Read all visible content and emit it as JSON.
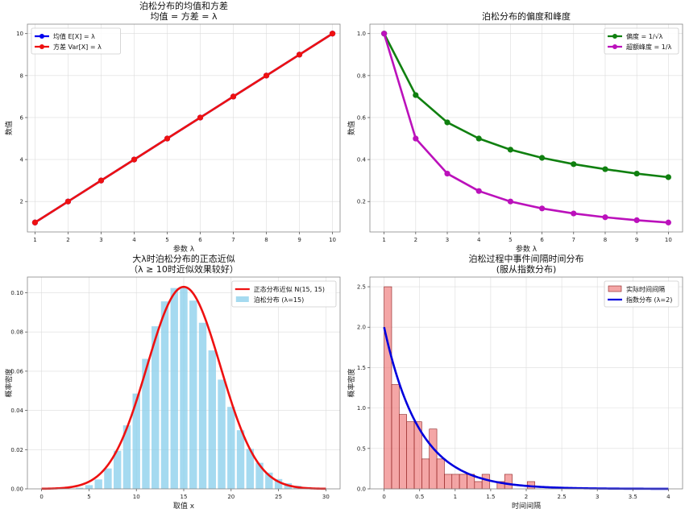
{
  "chart_data": [
    {
      "id": "p1",
      "type": "line",
      "title": [
        "泊松分布的均值和方差",
        "均值 = 方差 = λ"
      ],
      "xlabel": "参数 λ",
      "ylabel": "数值",
      "xlim": [
        0.77,
        10.23
      ],
      "ylim": [
        0.55,
        10.45
      ],
      "xticks": [
        1,
        2,
        3,
        4,
        5,
        6,
        7,
        8,
        9,
        10
      ],
      "yticks": [
        2,
        4,
        6,
        8,
        10
      ],
      "grid": true,
      "legend_position": "top-left",
      "series": [
        {
          "name": "均值 E[X] = λ",
          "color": "#0000ee",
          "x": [
            1,
            2,
            3,
            4,
            5,
            6,
            7,
            8,
            9,
            10
          ],
          "values": [
            1,
            2,
            3,
            4,
            5,
            6,
            7,
            8,
            9,
            10
          ]
        },
        {
          "name": "方差 Var[X] = λ",
          "color": "#ee1111",
          "x": [
            1,
            2,
            3,
            4,
            5,
            6,
            7,
            8,
            9,
            10
          ],
          "values": [
            1,
            2,
            3,
            4,
            5,
            6,
            7,
            8,
            9,
            10
          ]
        }
      ]
    },
    {
      "id": "p2",
      "type": "line",
      "title": [
        "泊松分布的偏度和峰度"
      ],
      "xlabel": "参数 λ",
      "ylabel": "数值",
      "xlim": [
        0.55,
        10.45
      ],
      "ylim": [
        0.055,
        1.045
      ],
      "xticks": [
        1,
        2,
        3,
        4,
        5,
        6,
        7,
        8,
        9,
        10
      ],
      "yticks": [
        0.2,
        0.4,
        0.6,
        0.8,
        1.0
      ],
      "ytick_format": 1,
      "grid": true,
      "legend_position": "top-right",
      "series": [
        {
          "name": "偏度 = 1/√λ",
          "color": "#108010",
          "x": [
            1,
            2,
            3,
            4,
            5,
            6,
            7,
            8,
            9,
            10
          ],
          "values": [
            1.0,
            0.707,
            0.577,
            0.5,
            0.447,
            0.408,
            0.378,
            0.354,
            0.333,
            0.316
          ]
        },
        {
          "name": "超额峰度 = 1/λ",
          "color": "#bb11bb",
          "x": [
            1,
            2,
            3,
            4,
            5,
            6,
            7,
            8,
            9,
            10
          ],
          "values": [
            1.0,
            0.5,
            0.333,
            0.25,
            0.2,
            0.167,
            0.143,
            0.125,
            0.111,
            0.1
          ]
        }
      ]
    },
    {
      "id": "p3",
      "type": "bar+line",
      "title": [
        "大λ时泊松分布的正态近似",
        "（λ ≥ 10时近似效果较好）"
      ],
      "xlabel": "取值 x",
      "ylabel": "概率密度",
      "xlim": [
        -1.5,
        31.5
      ],
      "ylim": [
        0,
        0.108
      ],
      "xticks": [
        0,
        5,
        10,
        15,
        20,
        25,
        30
      ],
      "yticks": [
        0.0,
        0.02,
        0.04,
        0.06,
        0.08,
        0.1
      ],
      "ytick_format": 2,
      "grid": true,
      "legend_position": "top-right",
      "bars": {
        "name": "泊松分布 (λ=15)",
        "color": "#87ceeb",
        "x": [
          0,
          1,
          2,
          3,
          4,
          5,
          6,
          7,
          8,
          9,
          10,
          11,
          12,
          13,
          14,
          15,
          16,
          17,
          18,
          19,
          20,
          21,
          22,
          23,
          24,
          25,
          26,
          27,
          28,
          29,
          30
        ],
        "values": [
          0.0,
          0.0,
          0.0,
          0.0002,
          0.0006,
          0.0019,
          0.0048,
          0.0104,
          0.0194,
          0.0324,
          0.0486,
          0.0663,
          0.0829,
          0.0956,
          0.1024,
          0.1024,
          0.096,
          0.0847,
          0.0706,
          0.0557,
          0.0418,
          0.0299,
          0.0204,
          0.0133,
          0.0083,
          0.005,
          0.0029,
          0.0016,
          0.0009,
          0.0004,
          0.0002
        ]
      },
      "line": {
        "name": "正态分布近似 N(15, 15)",
        "color": "#ee1111",
        "mean": 15,
        "variance": 15,
        "x_range": [
          0,
          30
        ]
      }
    },
    {
      "id": "p4",
      "type": "histogram+line",
      "title": [
        "泊松过程中事件间隔时间分布",
        "(服从指数分布)"
      ],
      "xlabel": "时间间隔",
      "ylabel": "概率密度",
      "xlim": [
        -0.2,
        4.2
      ],
      "ylim": [
        0,
        2.62
      ],
      "xticks": [
        0.0,
        0.5,
        1.0,
        1.5,
        2.0,
        2.5,
        3.0,
        3.5,
        4.0
      ],
      "yticks": [
        0.0,
        0.5,
        1.0,
        1.5,
        2.0,
        2.5
      ],
      "ytick_format": 1,
      "grid": true,
      "legend_position": "top-right",
      "histogram": {
        "name": "实际时间间隔",
        "color": "#f08080",
        "bin_width": 0.106,
        "bin_start": 0.0,
        "values": [
          2.5,
          1.29,
          0.92,
          0.83,
          0.83,
          0.37,
          0.74,
          0.37,
          0.18,
          0.18,
          0.18,
          0.18,
          0.09,
          0.18,
          0.0,
          0.09,
          0.18,
          0.0,
          0.0,
          0.09
        ]
      },
      "line": {
        "name": "指数分布 (λ=2)",
        "color": "#0000dd",
        "rate": 2,
        "x_range": [
          0,
          4
        ]
      }
    }
  ]
}
